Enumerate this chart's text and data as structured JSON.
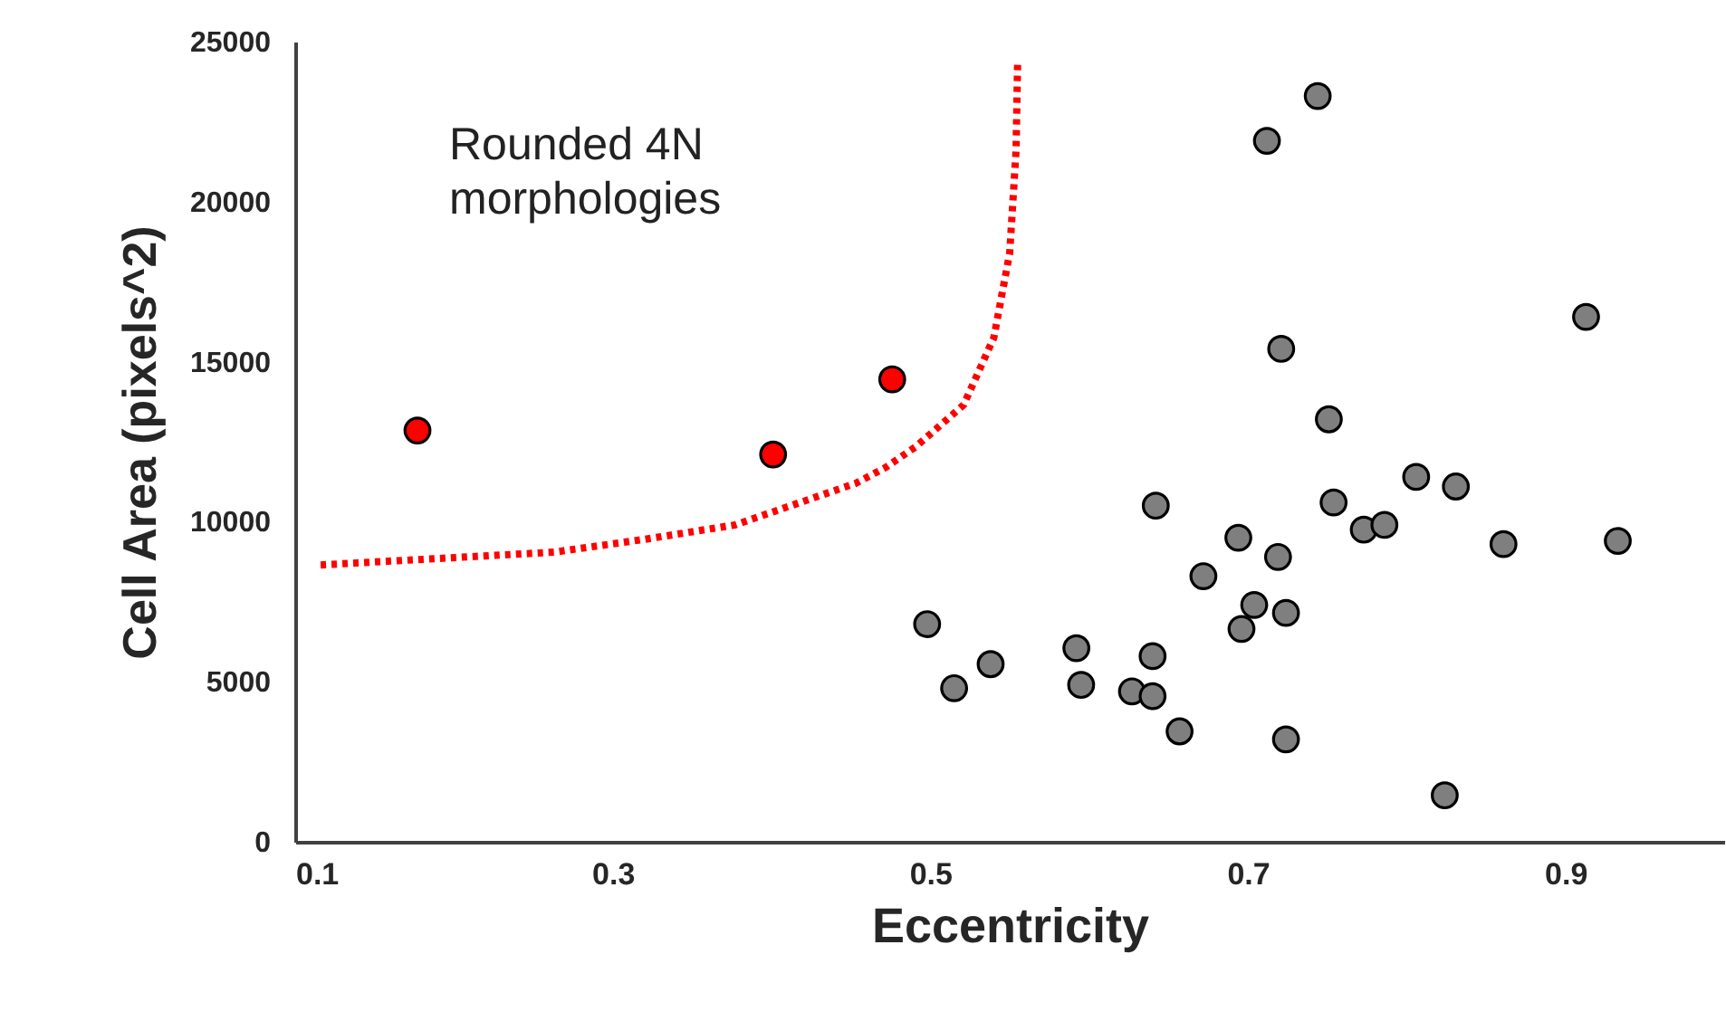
{
  "chart_data": {
    "type": "scatter",
    "xlabel": "Eccentricity",
    "ylabel": "Cell Area (pixels^2)",
    "xlim": [
      0.1,
      1.0
    ],
    "ylim": [
      0,
      25000
    ],
    "xticks": [
      0.1,
      0.3,
      0.5,
      0.7,
      0.9
    ],
    "yticks": [
      0,
      5000,
      10000,
      15000,
      20000,
      25000
    ],
    "annotations": [
      "Rounded 4N\nmorphologies"
    ],
    "marker": "circle",
    "series": [
      {
        "color": "#7f7f7f",
        "x": [
          0.721,
          0.913,
          0.751,
          0.806,
          0.831,
          0.754,
          0.642,
          0.773,
          0.786,
          0.861,
          0.933,
          0.694,
          0.719,
          0.672,
          0.704,
          0.724,
          0.696,
          0.498,
          0.538,
          0.515,
          0.592,
          0.595,
          0.64,
          0.627,
          0.64,
          0.657,
          0.724,
          0.824,
          0.712,
          0.744
        ],
        "values": [
          15400,
          16400,
          13200,
          11400,
          11100,
          10600,
          10500,
          9750,
          9900,
          9300,
          9400,
          9500,
          8900,
          8300,
          7400,
          7150,
          6650,
          6800,
          5550,
          4800,
          6050,
          4900,
          5800,
          4700,
          4550,
          3450,
          3200,
          1450,
          21900,
          23300
        ]
      },
      {
        "color": "#ff0000",
        "x": [
          0.177,
          0.401,
          0.476
        ],
        "values": [
          12850,
          12100,
          14450
        ]
      },
      {
        "type": "line",
        "color": "#ff0000",
        "line_style": "dotted",
        "marker": "none",
        "x": [
          0.116,
          0.263,
          0.32,
          0.377,
          0.453,
          0.472,
          0.491,
          0.521,
          0.54,
          0.55,
          0.554,
          0.555
        ],
        "values": [
          8650,
          9050,
          9450,
          9900,
          11200,
          11700,
          12350,
          13650,
          15750,
          18400,
          21600,
          24400
        ]
      }
    ]
  }
}
